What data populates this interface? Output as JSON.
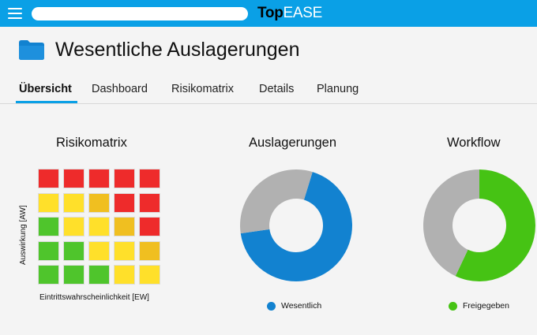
{
  "app": {
    "logo_part1": "Top",
    "logo_part2": "EASE",
    "search_placeholder": ""
  },
  "header": {
    "title": "Wesentliche Auslagerungen"
  },
  "tabs": [
    {
      "label": "Übersicht",
      "active": true
    },
    {
      "label": "Dashboard",
      "active": false
    },
    {
      "label": "Risikomatrix",
      "active": false
    },
    {
      "label": "Details",
      "active": false
    },
    {
      "label": "Planung",
      "active": false
    }
  ],
  "risk_matrix": {
    "title": "Risikomatrix",
    "y_label": "Auswirkung [AW]",
    "x_label": "Eintrittswahrscheinlichkeit [EW]",
    "rows": [
      [
        "red",
        "red",
        "red",
        "red",
        "red"
      ],
      [
        "yellow",
        "yellow",
        "amber",
        "red",
        "red"
      ],
      [
        "green",
        "yellow",
        "yellow",
        "amber",
        "red"
      ],
      [
        "green",
        "green",
        "yellow",
        "yellow",
        "amber"
      ],
      [
        "green",
        "green",
        "green",
        "yellow",
        "yellow"
      ]
    ]
  },
  "outsourcing": {
    "title": "Auslagerungen",
    "legend_label": "Wesentlich"
  },
  "workflow": {
    "title": "Workflow",
    "legend_label": "Freigegeben"
  },
  "chart_data": [
    {
      "type": "heatmap",
      "title": "Risikomatrix",
      "xlabel": "Eintrittswahrscheinlichkeit [EW]",
      "ylabel": "Auswirkung [AW]",
      "grid": [
        [
          "red",
          "red",
          "red",
          "red",
          "red"
        ],
        [
          "yellow",
          "yellow",
          "amber",
          "red",
          "red"
        ],
        [
          "green",
          "yellow",
          "yellow",
          "amber",
          "red"
        ],
        [
          "green",
          "green",
          "yellow",
          "yellow",
          "amber"
        ],
        [
          "green",
          "green",
          "green",
          "yellow",
          "yellow"
        ]
      ]
    },
    {
      "type": "pie",
      "title": "Auslagerungen",
      "categories": [
        "Wesentlich",
        ""
      ],
      "values": [
        68,
        32
      ],
      "colors": [
        "#1282d0",
        "#b1b1b1"
      ]
    },
    {
      "type": "pie",
      "title": "Workflow",
      "categories": [
        "Freigegeben",
        ""
      ],
      "values": [
        57,
        43
      ],
      "colors": [
        "#46c314",
        "#b1b1b1"
      ]
    }
  ],
  "colors": {
    "accent": "#0aa0e6",
    "folder": "#1282d0",
    "red": "#ee2b2b",
    "yellow": "#ffe02a",
    "amber": "#f0bf20",
    "green": "#4fc52c",
    "grey": "#b1b1b1",
    "blue": "#1282d0",
    "workflow_green": "#46c314"
  },
  "icons": {
    "menu": "hamburger-menu-icon",
    "folder": "folder-icon"
  }
}
